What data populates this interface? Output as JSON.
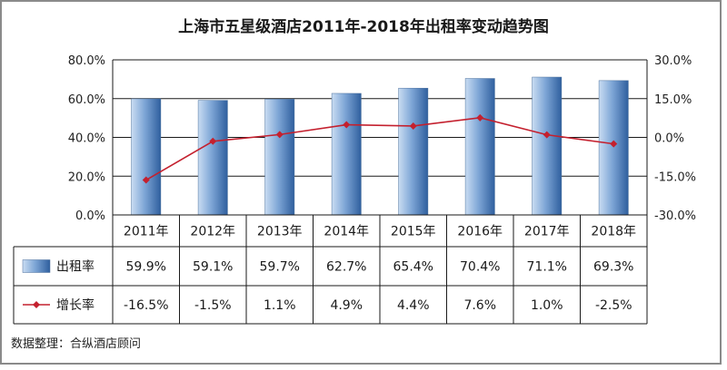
{
  "chart_data": {
    "type": "bar",
    "title": "上海市五星级酒店2011年-2018年出租率变动趋势图",
    "categories": [
      "2011年",
      "2012年",
      "2013年",
      "2014年",
      "2015年",
      "2016年",
      "2017年",
      "2018年"
    ],
    "series": [
      {
        "name": "出租率",
        "type": "bar",
        "axis": "left",
        "values": [
          59.9,
          59.1,
          59.7,
          62.7,
          65.4,
          70.4,
          71.1,
          69.3
        ],
        "labels": [
          "59.9%",
          "59.1%",
          "59.7%",
          "62.7%",
          "65.4%",
          "70.4%",
          "71.1%",
          "69.3%"
        ],
        "color": "#7fa8d8"
      },
      {
        "name": "增长率",
        "type": "line",
        "axis": "right",
        "values": [
          -16.5,
          -1.5,
          1.1,
          4.9,
          4.4,
          7.6,
          1.0,
          -2.5
        ],
        "labels": [
          "-16.5%",
          "-1.5%",
          "1.1%",
          "4.9%",
          "4.4%",
          "7.6%",
          "1.0%",
          "-2.5%"
        ],
        "color": "#c4202e"
      }
    ],
    "y_left": {
      "range": [
        0,
        80
      ],
      "ticks": [
        0,
        20,
        40,
        60,
        80
      ],
      "tick_labels": [
        "0.0%",
        "20.0%",
        "40.0%",
        "60.0%",
        "80.0%"
      ]
    },
    "y_right": {
      "range": [
        -30,
        30
      ],
      "ticks": [
        -30,
        -15,
        0,
        15,
        30
      ],
      "tick_labels": [
        "-30.0%",
        "-15.0%",
        "0.0%",
        "15.0%",
        "30.0%"
      ]
    },
    "grid": true,
    "legend": "data-table-left",
    "source_note": "数据整理：合纵酒店顾问"
  }
}
